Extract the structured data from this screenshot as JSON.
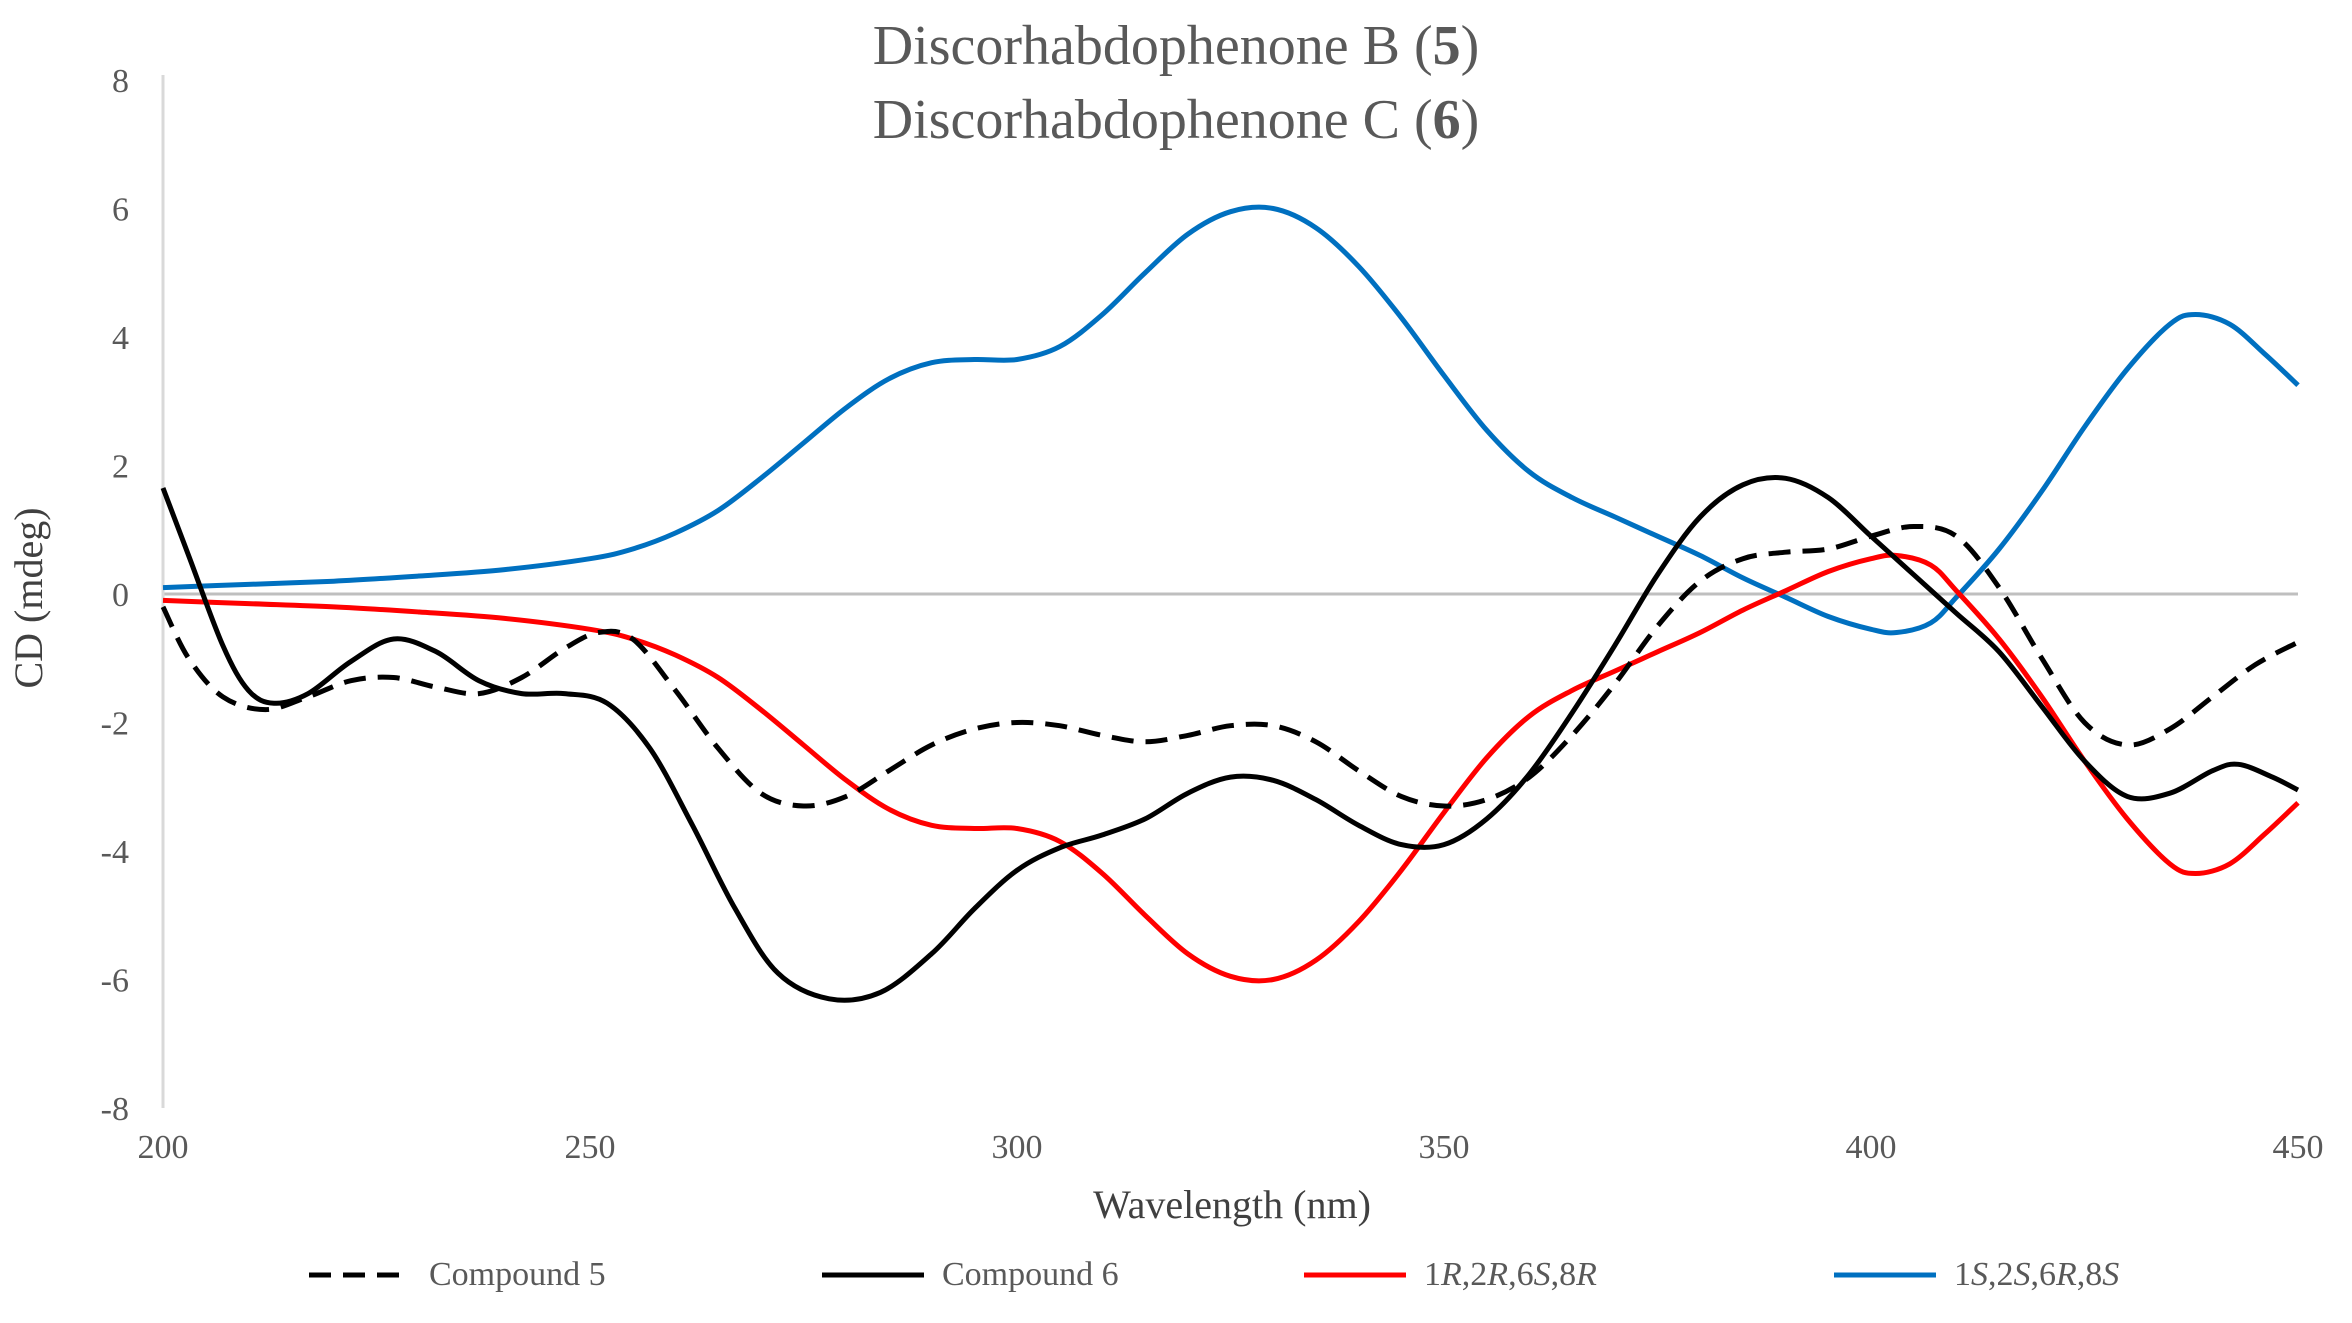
{
  "chart_data": {
    "type": "line",
    "title_lines": [
      {
        "text": "Discorhabdophenone B (",
        "bold": "5",
        "suffix": ")"
      },
      {
        "text": "Discorhabdophenone C (",
        "bold": "6",
        "suffix": ")"
      }
    ],
    "xlabel": "Wavelength (nm)",
    "ylabel": "CD (mdeg)",
    "xlim": [
      200,
      450
    ],
    "ylim": [
      -8,
      8
    ],
    "xticks": [
      200,
      250,
      300,
      350,
      400,
      450
    ],
    "yticks": [
      -8,
      -6,
      -4,
      -2,
      0,
      2,
      4,
      6,
      8
    ],
    "zero_line": true,
    "legend_position": "bottom",
    "series": [
      {
        "name": "Compound 5",
        "legend_parts": [
          {
            "t": "Compound 5",
            "i": false
          }
        ],
        "color": "#000000",
        "dash": "dashed",
        "points": [
          [
            200,
            -0.2
          ],
          [
            203,
            -1.0
          ],
          [
            207,
            -1.6
          ],
          [
            212,
            -1.8
          ],
          [
            217,
            -1.6
          ],
          [
            222,
            -1.35
          ],
          [
            227,
            -1.3
          ],
          [
            232,
            -1.45
          ],
          [
            237,
            -1.55
          ],
          [
            242,
            -1.3
          ],
          [
            247,
            -0.85
          ],
          [
            251,
            -0.6
          ],
          [
            255,
            -0.7
          ],
          [
            260,
            -1.5
          ],
          [
            265,
            -2.4
          ],
          [
            270,
            -3.1
          ],
          [
            275,
            -3.3
          ],
          [
            280,
            -3.15
          ],
          [
            285,
            -2.75
          ],
          [
            290,
            -2.35
          ],
          [
            295,
            -2.1
          ],
          [
            300,
            -2.0
          ],
          [
            305,
            -2.05
          ],
          [
            310,
            -2.2
          ],
          [
            315,
            -2.3
          ],
          [
            320,
            -2.2
          ],
          [
            325,
            -2.05
          ],
          [
            330,
            -2.05
          ],
          [
            335,
            -2.3
          ],
          [
            340,
            -2.75
          ],
          [
            345,
            -3.15
          ],
          [
            350,
            -3.3
          ],
          [
            355,
            -3.2
          ],
          [
            360,
            -2.85
          ],
          [
            365,
            -2.2
          ],
          [
            370,
            -1.4
          ],
          [
            375,
            -0.5
          ],
          [
            380,
            0.2
          ],
          [
            385,
            0.55
          ],
          [
            390,
            0.65
          ],
          [
            395,
            0.7
          ],
          [
            400,
            0.9
          ],
          [
            405,
            1.05
          ],
          [
            410,
            0.9
          ],
          [
            415,
            0.1
          ],
          [
            420,
            -1.0
          ],
          [
            425,
            -2.0
          ],
          [
            430,
            -2.35
          ],
          [
            435,
            -2.1
          ],
          [
            440,
            -1.6
          ],
          [
            445,
            -1.1
          ],
          [
            450,
            -0.75
          ]
        ]
      },
      {
        "name": "Compound 6",
        "legend_parts": [
          {
            "t": "Compound 6",
            "i": false
          }
        ],
        "color": "#000000",
        "dash": "solid",
        "points": [
          [
            200,
            1.65
          ],
          [
            203,
            0.6
          ],
          [
            207,
            -0.8
          ],
          [
            210,
            -1.5
          ],
          [
            213,
            -1.7
          ],
          [
            217,
            -1.55
          ],
          [
            222,
            -1.05
          ],
          [
            227,
            -0.7
          ],
          [
            232,
            -0.9
          ],
          [
            237,
            -1.35
          ],
          [
            242,
            -1.55
          ],
          [
            247,
            -1.55
          ],
          [
            252,
            -1.7
          ],
          [
            257,
            -2.4
          ],
          [
            262,
            -3.6
          ],
          [
            267,
            -4.9
          ],
          [
            272,
            -5.9
          ],
          [
            278,
            -6.3
          ],
          [
            284,
            -6.2
          ],
          [
            290,
            -5.6
          ],
          [
            295,
            -4.9
          ],
          [
            300,
            -4.3
          ],
          [
            305,
            -3.95
          ],
          [
            310,
            -3.75
          ],
          [
            315,
            -3.5
          ],
          [
            320,
            -3.1
          ],
          [
            325,
            -2.85
          ],
          [
            330,
            -2.9
          ],
          [
            335,
            -3.2
          ],
          [
            340,
            -3.6
          ],
          [
            345,
            -3.9
          ],
          [
            350,
            -3.9
          ],
          [
            355,
            -3.5
          ],
          [
            360,
            -2.8
          ],
          [
            365,
            -1.85
          ],
          [
            370,
            -0.8
          ],
          [
            375,
            0.3
          ],
          [
            380,
            1.2
          ],
          [
            385,
            1.7
          ],
          [
            390,
            1.8
          ],
          [
            395,
            1.5
          ],
          [
            400,
            0.9
          ],
          [
            405,
            0.3
          ],
          [
            410,
            -0.3
          ],
          [
            415,
            -0.9
          ],
          [
            420,
            -1.75
          ],
          [
            425,
            -2.6
          ],
          [
            430,
            -3.15
          ],
          [
            435,
            -3.1
          ],
          [
            440,
            -2.75
          ],
          [
            443,
            -2.65
          ],
          [
            447,
            -2.85
          ],
          [
            450,
            -3.05
          ]
        ]
      },
      {
        "name": "1R,2R,6S,8R",
        "legend_parts": [
          {
            "t": "1",
            "i": false
          },
          {
            "t": "R",
            "i": true
          },
          {
            "t": ",2",
            "i": false
          },
          {
            "t": "R",
            "i": true
          },
          {
            "t": ",6",
            "i": false
          },
          {
            "t": "S",
            "i": true
          },
          {
            "t": ",8",
            "i": false
          },
          {
            "t": "R",
            "i": true
          }
        ],
        "color": "#ff0000",
        "dash": "solid",
        "points": [
          [
            200,
            -0.1
          ],
          [
            210,
            -0.15
          ],
          [
            220,
            -0.2
          ],
          [
            230,
            -0.28
          ],
          [
            240,
            -0.38
          ],
          [
            250,
            -0.55
          ],
          [
            255,
            -0.7
          ],
          [
            260,
            -0.95
          ],
          [
            265,
            -1.3
          ],
          [
            270,
            -1.8
          ],
          [
            275,
            -2.35
          ],
          [
            280,
            -2.9
          ],
          [
            285,
            -3.35
          ],
          [
            290,
            -3.6
          ],
          [
            295,
            -3.65
          ],
          [
            300,
            -3.65
          ],
          [
            305,
            -3.85
          ],
          [
            310,
            -4.35
          ],
          [
            315,
            -5.0
          ],
          [
            320,
            -5.6
          ],
          [
            325,
            -5.95
          ],
          [
            330,
            -6.0
          ],
          [
            335,
            -5.7
          ],
          [
            340,
            -5.1
          ],
          [
            345,
            -4.3
          ],
          [
            350,
            -3.4
          ],
          [
            355,
            -2.55
          ],
          [
            360,
            -1.9
          ],
          [
            365,
            -1.5
          ],
          [
            370,
            -1.2
          ],
          [
            375,
            -0.9
          ],
          [
            380,
            -0.6
          ],
          [
            385,
            -0.25
          ],
          [
            390,
            0.05
          ],
          [
            395,
            0.35
          ],
          [
            400,
            0.55
          ],
          [
            403,
            0.6
          ],
          [
            407,
            0.45
          ],
          [
            410,
            0.05
          ],
          [
            415,
            -0.7
          ],
          [
            420,
            -1.6
          ],
          [
            425,
            -2.6
          ],
          [
            430,
            -3.5
          ],
          [
            435,
            -4.2
          ],
          [
            438,
            -4.35
          ],
          [
            442,
            -4.2
          ],
          [
            446,
            -3.75
          ],
          [
            450,
            -3.25
          ]
        ]
      },
      {
        "name": "1S,2S,6R,8S",
        "legend_parts": [
          {
            "t": "1",
            "i": false
          },
          {
            "t": "S",
            "i": true
          },
          {
            "t": ",2",
            "i": false
          },
          {
            "t": "S",
            "i": true
          },
          {
            "t": ",6",
            "i": false
          },
          {
            "t": "R",
            "i": true
          },
          {
            "t": ",8",
            "i": false
          },
          {
            "t": "S",
            "i": true
          }
        ],
        "color": "#0070c0",
        "dash": "solid",
        "points": [
          [
            200,
            0.1
          ],
          [
            210,
            0.15
          ],
          [
            220,
            0.2
          ],
          [
            230,
            0.28
          ],
          [
            240,
            0.38
          ],
          [
            250,
            0.55
          ],
          [
            255,
            0.7
          ],
          [
            260,
            0.95
          ],
          [
            265,
            1.3
          ],
          [
            270,
            1.8
          ],
          [
            275,
            2.35
          ],
          [
            280,
            2.9
          ],
          [
            285,
            3.35
          ],
          [
            290,
            3.6
          ],
          [
            295,
            3.65
          ],
          [
            300,
            3.65
          ],
          [
            305,
            3.85
          ],
          [
            310,
            4.35
          ],
          [
            315,
            5.0
          ],
          [
            320,
            5.6
          ],
          [
            325,
            5.95
          ],
          [
            330,
            6.0
          ],
          [
            335,
            5.7
          ],
          [
            340,
            5.1
          ],
          [
            345,
            4.3
          ],
          [
            350,
            3.4
          ],
          [
            355,
            2.55
          ],
          [
            360,
            1.9
          ],
          [
            365,
            1.5
          ],
          [
            370,
            1.2
          ],
          [
            375,
            0.9
          ],
          [
            380,
            0.6
          ],
          [
            385,
            0.25
          ],
          [
            390,
            -0.05
          ],
          [
            395,
            -0.35
          ],
          [
            400,
            -0.55
          ],
          [
            403,
            -0.6
          ],
          [
            407,
            -0.45
          ],
          [
            410,
            -0.05
          ],
          [
            415,
            0.7
          ],
          [
            420,
            1.6
          ],
          [
            425,
            2.6
          ],
          [
            430,
            3.5
          ],
          [
            435,
            4.2
          ],
          [
            438,
            4.35
          ],
          [
            442,
            4.2
          ],
          [
            446,
            3.75
          ],
          [
            450,
            3.25
          ]
        ]
      }
    ]
  }
}
